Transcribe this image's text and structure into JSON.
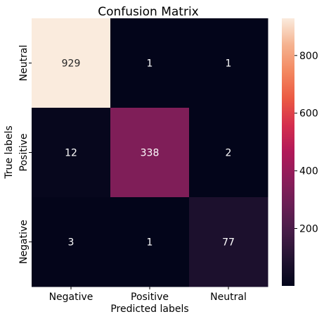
{
  "chart_data": {
    "type": "heatmap",
    "title": "Confusion Matrix",
    "xlabel": "Predicted labels",
    "ylabel": "True labels",
    "x_categories": [
      "Negative",
      "Positive",
      "Neutral"
    ],
    "y_categories": [
      "Neutral",
      "Positive",
      "Negative"
    ],
    "values": [
      [
        929,
        1,
        1
      ],
      [
        12,
        338,
        2
      ],
      [
        3,
        1,
        77
      ]
    ],
    "colorbar": {
      "min": 1,
      "max": 929,
      "ticks": [
        200,
        400,
        600,
        800
      ],
      "colormap": "rocket"
    },
    "colors": {
      "text_on_light": "#262626",
      "text_on_dark": "#ffffff"
    }
  }
}
